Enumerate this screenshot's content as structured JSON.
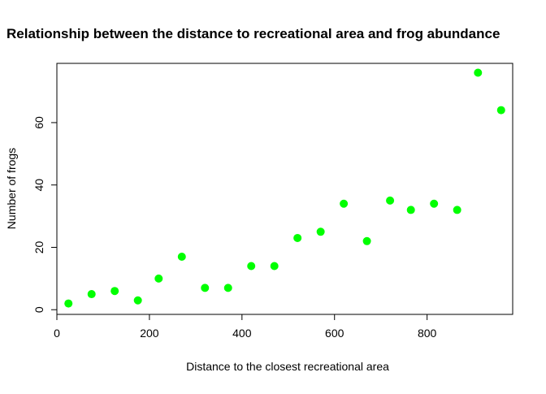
{
  "chart_data": {
    "type": "scatter",
    "title": "Relationship between the distance to recreational area and frog abundance",
    "xlabel": "Distance to the closest recreational area",
    "ylabel": "Number of frogs",
    "xlim": [
      0,
      985
    ],
    "ylim": [
      -1.5,
      79
    ],
    "x_ticks": [
      0,
      200,
      400,
      600,
      800
    ],
    "y_ticks": [
      0,
      20,
      40,
      60
    ],
    "grid": false,
    "legend": "none",
    "point_color": "#00ff00",
    "x": [
      25,
      75,
      125,
      175,
      220,
      270,
      320,
      370,
      420,
      470,
      520,
      570,
      620,
      670,
      720,
      765,
      815,
      865,
      910,
      960
    ],
    "y": [
      2,
      5,
      6,
      3,
      10,
      17,
      7,
      7,
      14,
      14,
      23,
      25,
      34,
      22,
      35,
      32,
      34,
      32,
      76,
      64
    ]
  }
}
